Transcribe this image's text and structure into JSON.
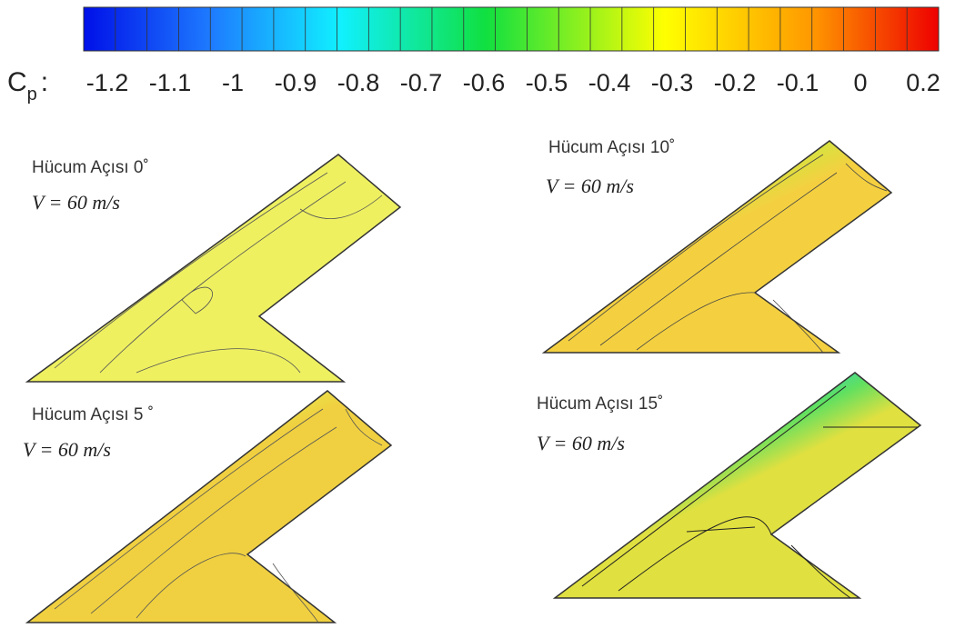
{
  "colorbar": {
    "symbol": "C",
    "subscript": "p",
    "suffix": ":",
    "ticks": [
      -1.2,
      -1.1,
      -1,
      -0.9,
      -0.8,
      -0.7,
      -0.6,
      -0.5,
      -0.4,
      -0.3,
      -0.2,
      -0.1,
      0,
      0.2
    ]
  },
  "panels": [
    {
      "title": "Hücum Açısı 0˚",
      "condition": "V = 60 m/s"
    },
    {
      "title": "Hücum Açısı 5 ˚",
      "condition": "V = 60 m/s"
    },
    {
      "title": "Hücum Açısı 10˚",
      "condition": "V = 60 m/s"
    },
    {
      "title": "Hücum Açısı 15˚",
      "condition": "V = 60 m/s"
    }
  ]
}
